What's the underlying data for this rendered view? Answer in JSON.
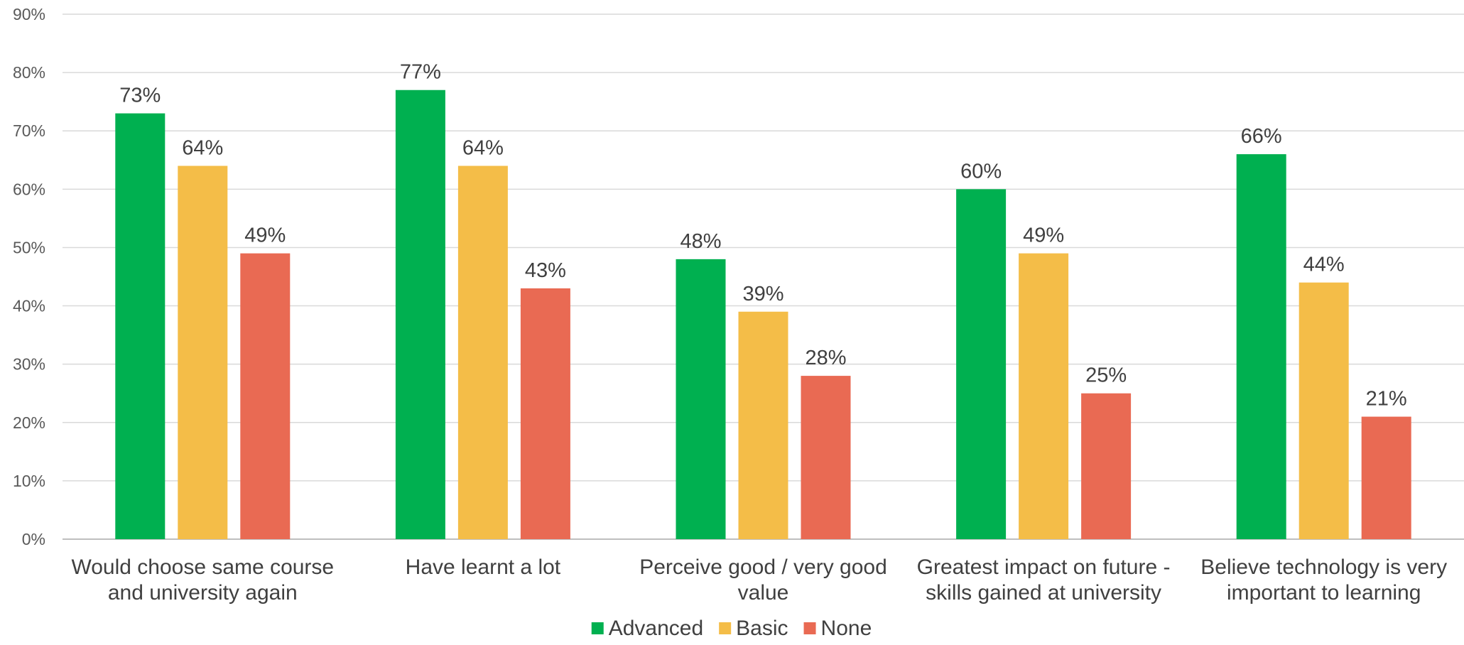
{
  "chart_data": {
    "type": "bar",
    "title": "",
    "xlabel": "",
    "ylabel": "",
    "ylim": [
      0,
      90
    ],
    "ytick_step": 10,
    "ytick_suffix": "%",
    "grid": true,
    "legend_position": "bottom",
    "categories": [
      [
        "Would choose same course",
        "and university again"
      ],
      [
        "Have learnt a lot"
      ],
      [
        "Perceive good / very good",
        "value"
      ],
      [
        "Greatest impact on future -",
        "skills gained at university"
      ],
      [
        "Believe technology is very",
        "important to learning"
      ]
    ],
    "series": [
      {
        "name": "Advanced",
        "color": "#00b050",
        "values": [
          73,
          77,
          48,
          60,
          66
        ]
      },
      {
        "name": "Basic",
        "color": "#f4bd48",
        "values": [
          64,
          64,
          39,
          49,
          44
        ]
      },
      {
        "name": "None",
        "color": "#e96a53",
        "values": [
          49,
          43,
          28,
          25,
          21
        ]
      }
    ],
    "value_suffix": "%"
  }
}
